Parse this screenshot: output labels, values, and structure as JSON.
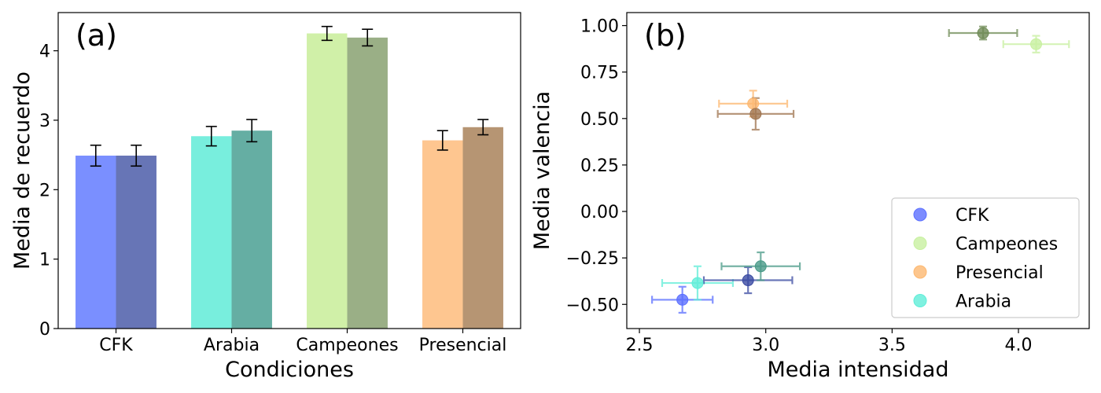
{
  "chart_data": [
    {
      "panel_label": "(a)",
      "type": "bar",
      "xlabel": "Condiciones",
      "ylabel": "Media de recuerdo",
      "ylim": [
        0,
        4.55
      ],
      "yticks": [
        0,
        1,
        2,
        3,
        4
      ],
      "categories": [
        "CFK",
        "Arabia",
        "Campeones",
        "Presencial"
      ],
      "series": [
        {
          "values": [
            2.49,
            2.77,
            4.25,
            2.71
          ],
          "errors": [
            0.15,
            0.14,
            0.1,
            0.14
          ],
          "colors": [
            "#7a8fff",
            "#78eedd",
            "#d0f0a8",
            "#fec690"
          ]
        },
        {
          "values": [
            2.49,
            2.85,
            4.19,
            2.9
          ],
          "errors": [
            0.15,
            0.16,
            0.12,
            0.11
          ],
          "colors": [
            "#6775b6",
            "#65aea3",
            "#9aaf86",
            "#b69573"
          ]
        }
      ],
      "grid": false
    },
    {
      "panel_label": "(b)",
      "type": "scatter",
      "xlabel": "Media intensidad",
      "ylabel": "Media valencia",
      "xlim": [
        2.45,
        4.28
      ],
      "ylim": [
        -0.63,
        1.07
      ],
      "xticks": [
        "2.5",
        "3.0",
        "3.5",
        "4.0"
      ],
      "yticks": [
        "−0.50",
        "−0.25",
        "0.00",
        "0.25",
        "0.50",
        "0.75",
        "1.00"
      ],
      "legend_position": "lower-right",
      "grid": false,
      "series": [
        {
          "name": "CFK",
          "color": "#5b6fff",
          "points": [
            {
              "x": 2.67,
              "y": -0.475,
              "xerr": 0.12,
              "yerr": 0.07
            }
          ]
        },
        {
          "name": "Campeones",
          "color": "#c8f0a0",
          "points": [
            {
              "x": 4.07,
              "y": 0.9,
              "xerr": 0.13,
              "yerr": 0.045
            }
          ]
        },
        {
          "name": "Presencial",
          "color": "#fdb870",
          "points": [
            {
              "x": 2.95,
              "y": 0.58,
              "xerr": 0.135,
              "yerr": 0.07
            }
          ]
        },
        {
          "name": "Arabia",
          "color": "#5fedd8",
          "points": [
            {
              "x": 2.73,
              "y": -0.385,
              "xerr": 0.14,
              "yerr": 0.09
            }
          ]
        },
        {
          "color": "#3a4aa2",
          "points": [
            {
              "x": 2.93,
              "y": -0.37,
              "xerr": 0.175,
              "yerr": 0.07
            }
          ]
        },
        {
          "color": "#4a9a88",
          "points": [
            {
              "x": 2.98,
              "y": -0.295,
              "xerr": 0.155,
              "yerr": 0.075
            }
          ]
        },
        {
          "color": "#a07550",
          "points": [
            {
              "x": 2.96,
              "y": 0.525,
              "xerr": 0.15,
              "yerr": 0.085
            }
          ]
        },
        {
          "color": "#6e8a55",
          "points": [
            {
              "x": 3.86,
              "y": 0.96,
              "xerr": 0.135,
              "yerr": 0.035
            }
          ]
        }
      ]
    }
  ]
}
